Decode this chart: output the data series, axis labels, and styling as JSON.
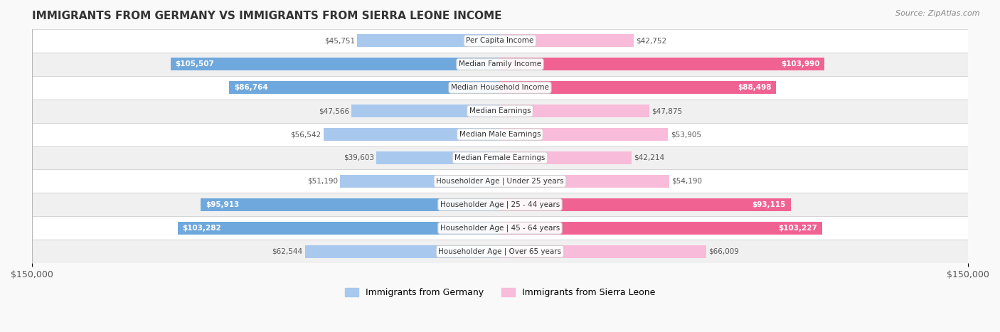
{
  "title": "IMMIGRANTS FROM GERMANY VS IMMIGRANTS FROM SIERRA LEONE INCOME",
  "source": "Source: ZipAtlas.com",
  "categories": [
    "Per Capita Income",
    "Median Family Income",
    "Median Household Income",
    "Median Earnings",
    "Median Male Earnings",
    "Median Female Earnings",
    "Householder Age | Under 25 years",
    "Householder Age | 25 - 44 years",
    "Householder Age | 45 - 64 years",
    "Householder Age | Over 65 years"
  ],
  "germany_values": [
    45751,
    105507,
    86764,
    47566,
    56542,
    39603,
    51190,
    95913,
    103282,
    62544
  ],
  "sierra_leone_values": [
    42752,
    103990,
    88498,
    47875,
    53905,
    42214,
    54190,
    93115,
    103227,
    66009
  ],
  "germany_labels": [
    "$45,751",
    "$105,507",
    "$86,764",
    "$47,566",
    "$56,542",
    "$39,603",
    "$51,190",
    "$95,913",
    "$103,282",
    "$62,544"
  ],
  "sierra_leone_labels": [
    "$42,752",
    "$103,990",
    "$88,498",
    "$47,875",
    "$53,905",
    "$42,214",
    "$54,190",
    "$93,115",
    "$103,227",
    "$66,009"
  ],
  "germany_color_dark": "#6fa8dc",
  "germany_color_light": "#a8c8ee",
  "sierra_leone_color_dark": "#f06292",
  "sierra_leone_color_light": "#f8bbd9",
  "bar_height": 0.55,
  "max_value": 150000,
  "bg_color": "#f5f5f5",
  "row_bg_even": "#ffffff",
  "row_bg_odd": "#f0f0f0",
  "legend_germany": "Immigrants from Germany",
  "legend_sierra_leone": "Immigrants from Sierra Leone",
  "germany_label_threshold": 70000,
  "sierra_leone_label_threshold": 70000
}
